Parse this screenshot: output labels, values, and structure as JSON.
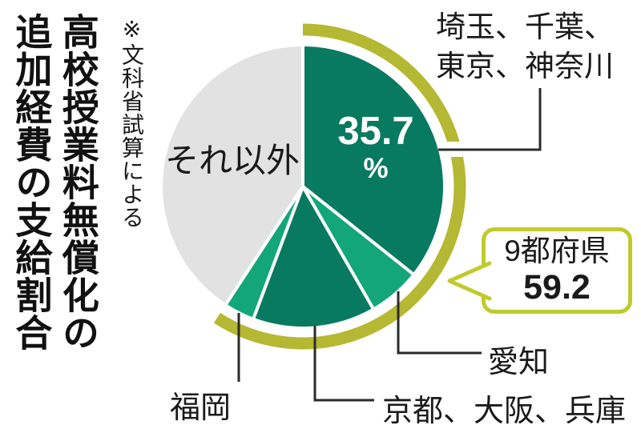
{
  "title": {
    "full": "高校授業料無償化の追加経費の支給割合",
    "line1": "高校授業料無償化の",
    "line2": "追加経費の支給割合"
  },
  "source_note": "※文科省試算による",
  "chart_data": {
    "type": "pie",
    "title": "高校授業料無償化の追加経費の支給割合",
    "source_note": "※文科省試算による",
    "unit": "%",
    "start_angle_deg": 0,
    "direction": "clockwise",
    "segments": [
      {
        "label": "埼玉、千葉、東京、神奈川",
        "value": 35.7,
        "value_shown": "35.7%",
        "labeled": true,
        "color": "#077a60"
      },
      {
        "label": "愛知",
        "value": 6.0,
        "labeled": false,
        "estimated": true,
        "color": "#13a67a"
      },
      {
        "label": "京都、大阪、兵庫",
        "value": 14.0,
        "labeled": false,
        "estimated": true,
        "color": "#077a60"
      },
      {
        "label": "福岡",
        "value": 3.5,
        "labeled": false,
        "estimated": true,
        "color": "#13a67a"
      },
      {
        "label": "それ以外",
        "value": 40.8,
        "labeled": false,
        "color": "#e2e2e2"
      }
    ],
    "highlight": {
      "label": "9都府県",
      "value": 59.2,
      "covers_segments": [
        0,
        1,
        2,
        3
      ],
      "ring_color": "#b5b832"
    },
    "legend_position": "none",
    "grid": false
  },
  "labels": {
    "seg_saitama_line1": "埼玉、千葉、",
    "seg_saitama_line2": "東京、神奈川",
    "inner_value": "35.7",
    "inner_unit": "%",
    "others": "それ以外",
    "aichi": "愛知",
    "kyoto": "京都、大阪、兵庫",
    "fukuoka": "福岡"
  },
  "callout": {
    "line1": "9都府県",
    "line2": "59.2"
  },
  "colors": {
    "dark_green": "#077a60",
    "bright_green": "#13a67a",
    "gray": "#e2e2e2",
    "ring_olive": "#b5b832",
    "callout_border": "#c1ca2e",
    "connector": "#2b2b2b"
  }
}
